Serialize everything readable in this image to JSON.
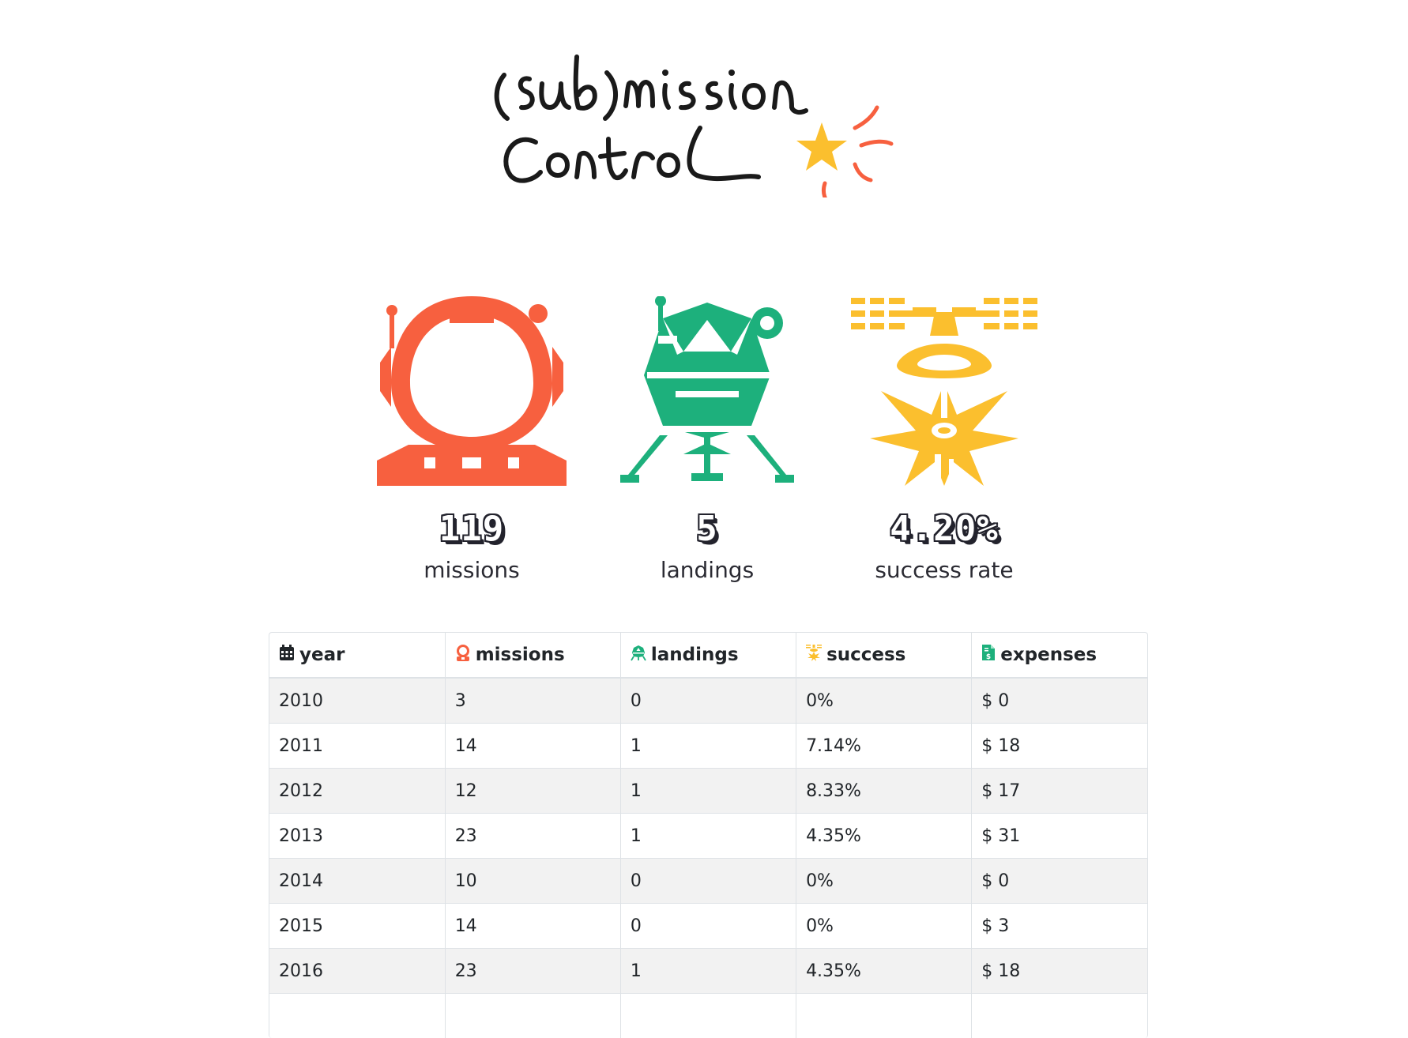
{
  "logo": {
    "line1": "(sub)mission",
    "line2": "control"
  },
  "stats": [
    {
      "value": "119",
      "label": "missions",
      "icon": "astronaut-helmet-icon",
      "color": "#f7603f"
    },
    {
      "value": "5",
      "label": "landings",
      "icon": "lunar-lander-icon",
      "color": "#1db07c"
    },
    {
      "value": "4.20%",
      "label": "success rate",
      "icon": "satellite-explosion-icon",
      "color": "#fbbf2e"
    }
  ],
  "table": {
    "headers": [
      {
        "label": "year",
        "icon": "calendar-icon"
      },
      {
        "label": "missions",
        "icon": "astronaut-icon"
      },
      {
        "label": "landings",
        "icon": "lander-icon"
      },
      {
        "label": "success",
        "icon": "satellite-icon"
      },
      {
        "label": "expenses",
        "icon": "invoice-icon"
      }
    ],
    "rows": [
      [
        "2010",
        "3",
        "0",
        "0%",
        "$ 0"
      ],
      [
        "2011",
        "14",
        "1",
        "7.14%",
        "$ 18"
      ],
      [
        "2012",
        "12",
        "1",
        "8.33%",
        "$ 17"
      ],
      [
        "2013",
        "23",
        "1",
        "4.35%",
        "$ 31"
      ],
      [
        "2014",
        "10",
        "0",
        "0%",
        "$ 0"
      ],
      [
        "2015",
        "14",
        "0",
        "0%",
        "$ 3"
      ],
      [
        "2016",
        "23",
        "1",
        "4.35%",
        "$ 18"
      ],
      [
        "",
        "",
        "",
        "",
        ""
      ]
    ]
  },
  "colors": {
    "accent_orange": "#f7603f",
    "accent_green": "#1db07c",
    "accent_yellow": "#fbbf2e",
    "text": "#212529"
  }
}
